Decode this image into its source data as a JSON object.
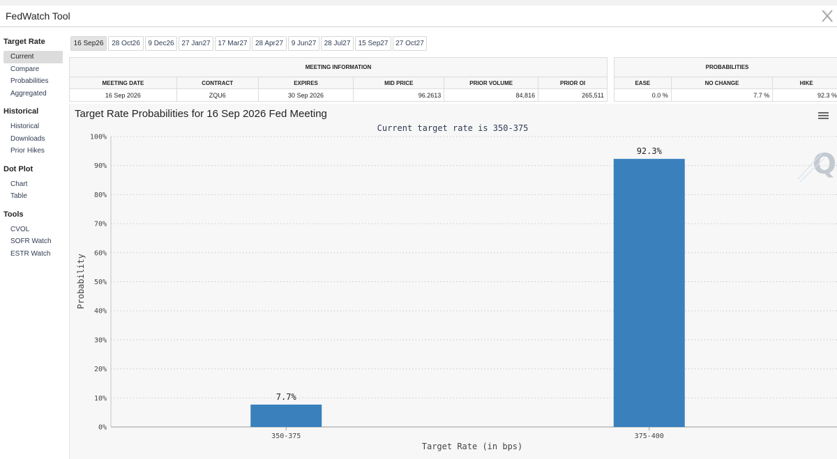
{
  "app": {
    "title": "FedWatch Tool"
  },
  "sidebar": {
    "sections": [
      {
        "heading": "Target Rate",
        "items": [
          "Current",
          "Compare",
          "Probabilities",
          "Aggregated"
        ]
      },
      {
        "heading": "Historical",
        "items": [
          "Historical",
          "Downloads",
          "Prior Hikes"
        ]
      },
      {
        "heading": "Dot Plot",
        "items": [
          "Chart",
          "Table"
        ]
      },
      {
        "heading": "Tools",
        "items": [
          "CVOL",
          "SOFR Watch",
          "ESTR Watch"
        ]
      }
    ]
  },
  "tabs": [
    "16 Sep26",
    "28 Oct26",
    "9 Dec26",
    "27 Jan27",
    "17 Mar27",
    "28 Apr27",
    "9 Jun27",
    "28 Jul27",
    "15 Sep27",
    "27 Oct27"
  ],
  "meeting_info": {
    "heading": "MEETING INFORMATION",
    "headers": [
      "MEETING DATE",
      "CONTRACT",
      "EXPIRES",
      "MID PRICE",
      "PRIOR VOLUME",
      "PRIOR OI"
    ],
    "row": [
      "16 Sep 2026",
      "ZQU6",
      "30 Sep 2026",
      "96.2613",
      "84,816",
      "265,511"
    ]
  },
  "probabilities": {
    "heading": "PROBABILITIES",
    "headers": [
      "EASE",
      "NO CHANGE",
      "HIKE"
    ],
    "row": [
      "0.0 %",
      "7.7 %",
      "92.3 %"
    ]
  },
  "chart_data": {
    "type": "bar",
    "title": "Target Rate Probabilities for 16 Sep 2026 Fed Meeting",
    "subtitle": "Current target rate is 350-375",
    "xlabel": "Target Rate (in bps)",
    "ylabel": "Probability",
    "categories": [
      "350-375",
      "375-400"
    ],
    "values": [
      7.7,
      92.3
    ],
    "data_labels": [
      "7.7%",
      "92.3%"
    ],
    "ylim": [
      0,
      100
    ],
    "yticks": [
      "0%",
      "10%",
      "20%",
      "30%",
      "40%",
      "50%",
      "60%",
      "70%",
      "80%",
      "90%",
      "100%"
    ],
    "grid": true,
    "bar_color": "#3a80bd",
    "watermark": "Q"
  }
}
